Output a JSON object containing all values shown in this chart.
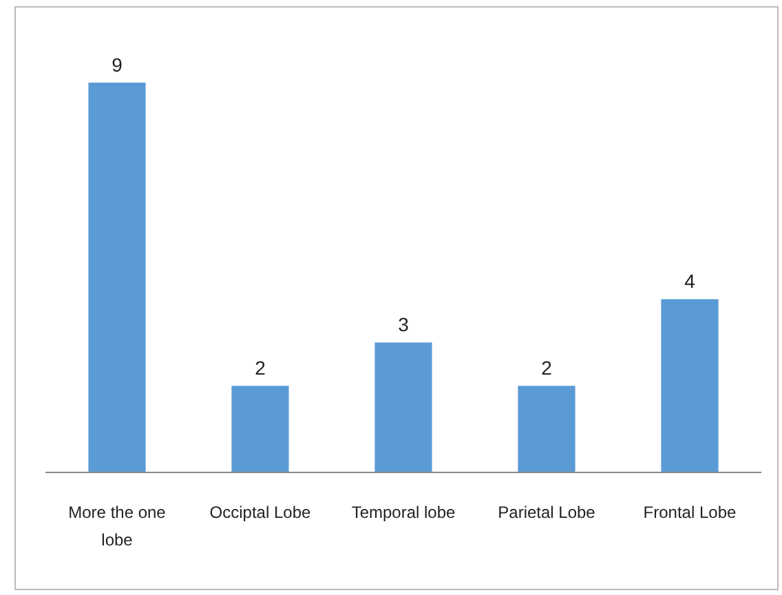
{
  "chart_data": {
    "type": "bar",
    "categories": [
      "More the one lobe",
      "Occiptal Lobe",
      "Temporal lobe",
      "Parietal Lobe",
      "Frontal Lobe"
    ],
    "values": [
      9,
      2,
      3,
      2,
      4
    ],
    "color": "#5b9bd5",
    "data_labels": true
  }
}
